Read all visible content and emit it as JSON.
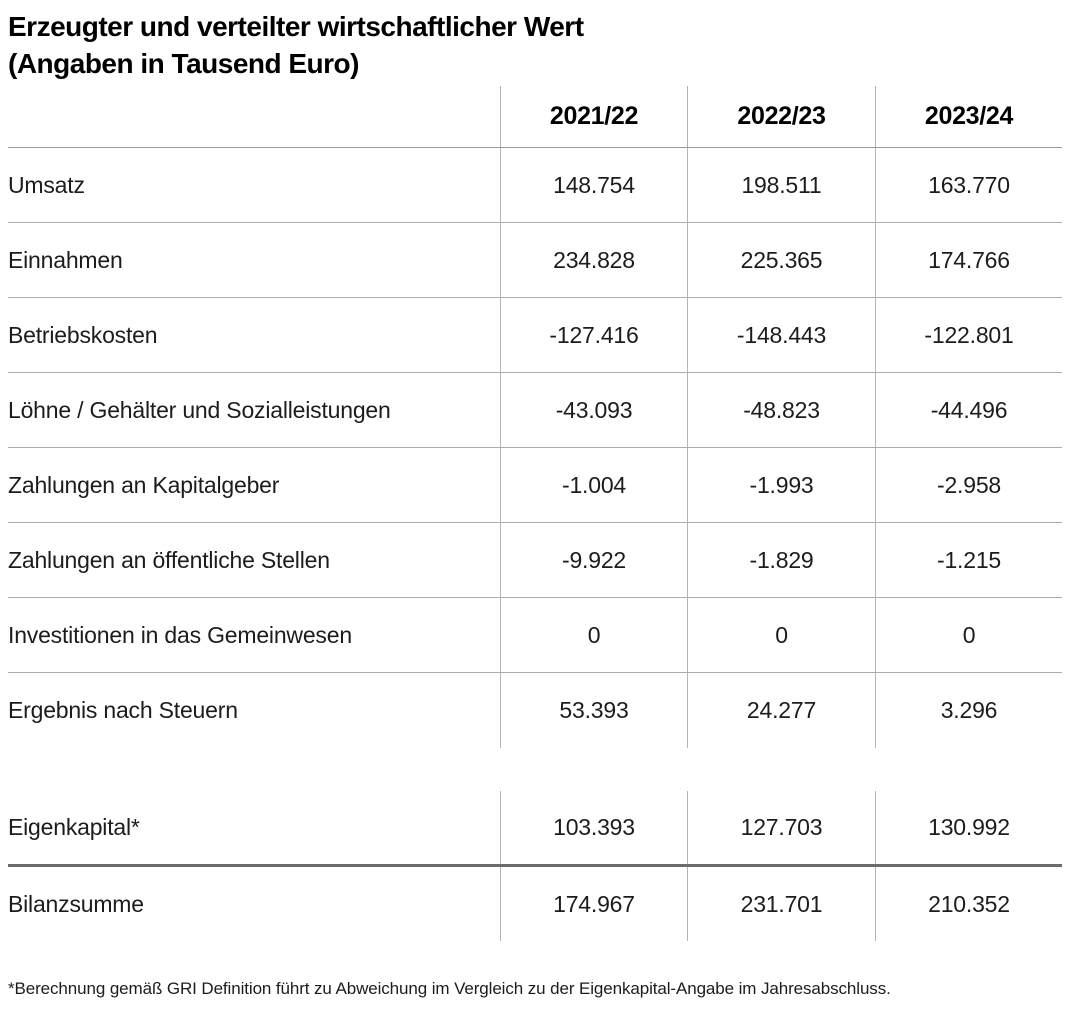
{
  "title": {
    "line1": "Erzeugter und verteilter wirtschaftlicher Wert",
    "line2": "(Angaben in Tausend Euro)"
  },
  "table": {
    "columns": [
      "2021/22",
      "2022/23",
      "2023/24"
    ],
    "rows": [
      {
        "label": "Umsatz",
        "values": [
          "148.754",
          "198.511",
          "163.770"
        ]
      },
      {
        "label": "Einnahmen",
        "values": [
          "234.828",
          "225.365",
          "174.766"
        ]
      },
      {
        "label": "Betriebskosten",
        "values": [
          "-127.416",
          "-148.443",
          "-122.801"
        ]
      },
      {
        "label": "Löhne / Gehälter und Sozialleistungen",
        "values": [
          "-43.093",
          "-48.823",
          "-44.496"
        ]
      },
      {
        "label": "Zahlungen an Kapitalgeber",
        "values": [
          "-1.004",
          "-1.993",
          "-2.958"
        ]
      },
      {
        "label": "Zahlungen an öffentliche Stellen",
        "values": [
          "-9.922",
          "-1.829",
          "-1.215"
        ]
      },
      {
        "label": "Investitionen in das Gemeinwesen",
        "values": [
          "0",
          "0",
          "0"
        ]
      },
      {
        "label": "Ergebnis nach Steuern",
        "values": [
          "53.393",
          "24.277",
          "3.296"
        ]
      }
    ],
    "summary_rows": [
      {
        "label": "Eigenkapital*",
        "values": [
          "103.393",
          "127.703",
          "130.992"
        ]
      },
      {
        "label": "Bilanzsumme",
        "values": [
          "174.967",
          "231.701",
          "210.352"
        ]
      }
    ]
  },
  "footnote": "*Berechnung gemäß GRI Definition führt zu Abweichung im Vergleich zu der Eigenkapital-Angabe im Jahresabschluss.",
  "colors": {
    "text": "#1c1c1c",
    "title_text": "#000000",
    "row_line": "#ababab",
    "header_line": "#9a9a9a",
    "column_line": "#b3b3b3",
    "summary_line": "#6b6b6b",
    "background": "#ffffff"
  }
}
